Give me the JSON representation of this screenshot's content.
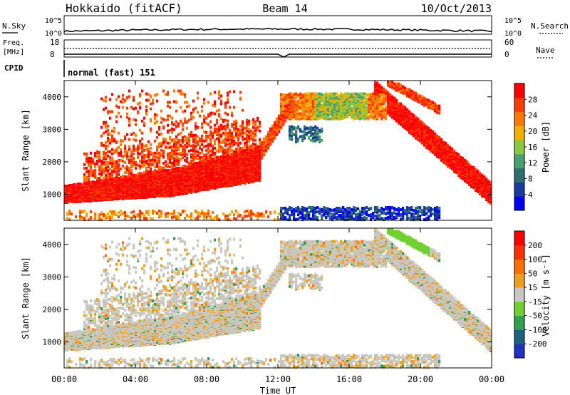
{
  "header": {
    "station": "Hokkaido (fitACF)",
    "beam": "Beam 14",
    "date": "10/Oct/2013"
  },
  "top_strips": {
    "nsky_label": "N.Sky",
    "nsky_ticks": [
      "10^5",
      "10^0"
    ],
    "nsearch_label": "N.Search",
    "nsearch_ticks": [
      "10^5",
      "10^0"
    ],
    "freq_label_1": "Freq.",
    "freq_label_2": "[MHz]",
    "freq_ticks": [
      "18",
      "8"
    ],
    "nave_label": "Nave",
    "nave_ticks": [
      "60",
      "0"
    ],
    "cpid_label": "CPID",
    "cpid_value": "normal (fast) 151"
  },
  "chart_data": [
    {
      "type": "heatmap",
      "panel": "power",
      "ylabel": "Slant Range [km]",
      "yticks": [
        "4000",
        "3000",
        "2000",
        "1000"
      ],
      "xlim": [
        0,
        24
      ],
      "ylim": [
        200,
        4500
      ],
      "colorbar_label": "Power [dB]",
      "colorbar_ticks": [
        "28",
        "24",
        "20",
        "16",
        "12",
        "8",
        "4"
      ],
      "colors": [
        "#0000ff",
        "#1a3aa0",
        "#2e6e6e",
        "#4aa070",
        "#8cc83c",
        "#f0b000",
        "#ff7800",
        "#ff3c00",
        "#ff0000"
      ]
    },
    {
      "type": "heatmap",
      "panel": "velocity",
      "ylabel": "Slant Range [km]",
      "yticks": [
        "4000",
        "3000",
        "2000",
        "1000"
      ],
      "xlim": [
        0,
        24
      ],
      "ylim": [
        200,
        4500
      ],
      "colorbar_label": "Velocity [m s⁻¹]",
      "colorbar_ticks": [
        "200",
        "100",
        "50",
        "15",
        "-15",
        "-50",
        "-100",
        "-200"
      ],
      "colors": [
        "#2030c0",
        "#206080",
        "#30a050",
        "#70d030",
        "#c8c8c0",
        "#f0a020",
        "#ff7000",
        "#ff3000",
        "#ff0000"
      ]
    }
  ],
  "x_axis": {
    "ticks": [
      "00:00",
      "04:00",
      "08:00",
      "12:00",
      "16:00",
      "20:00",
      "00:00"
    ],
    "label": "Time UT"
  }
}
